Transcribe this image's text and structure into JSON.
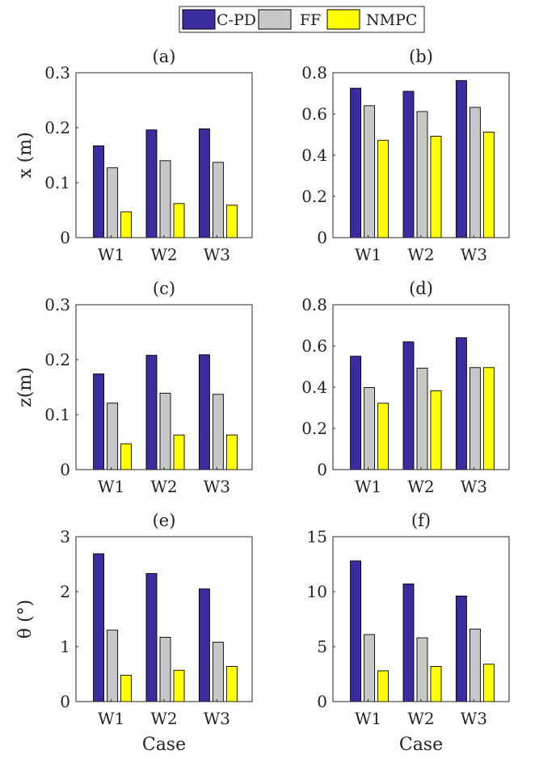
{
  "legend": [
    {
      "name": "C-PD",
      "color": "#3A2B9E"
    },
    {
      "name": "FF",
      "color": "#C8C8C8"
    },
    {
      "name": "NMPC",
      "color": "#FFFF00"
    }
  ],
  "chart_data": [
    {
      "type": "bar",
      "title": "(a)",
      "xlabel": "",
      "ylabel": "x (m)",
      "categories": [
        "W1",
        "W2",
        "W3"
      ],
      "ylim": [
        0,
        0.3
      ],
      "yticks": [
        0,
        0.1,
        0.2,
        0.3
      ],
      "ytick_labels": [
        "0",
        "0.1",
        "0.2",
        "0.3"
      ],
      "series": [
        {
          "name": "C-PD",
          "values": [
            0.167,
            0.196,
            0.198
          ]
        },
        {
          "name": "FF",
          "values": [
            0.127,
            0.14,
            0.137
          ]
        },
        {
          "name": "NMPC",
          "values": [
            0.047,
            0.062,
            0.059
          ]
        }
      ]
    },
    {
      "type": "bar",
      "title": "(b)",
      "xlabel": "",
      "ylabel": "",
      "categories": [
        "W1",
        "W2",
        "W3"
      ],
      "ylim": [
        0,
        0.8
      ],
      "yticks": [
        0,
        0.2,
        0.4,
        0.6,
        0.8
      ],
      "ytick_labels": [
        "0",
        "0.2",
        "0.4",
        "0.6",
        "0.8"
      ],
      "series": [
        {
          "name": "C-PD",
          "values": [
            0.725,
            0.71,
            0.762
          ]
        },
        {
          "name": "FF",
          "values": [
            0.64,
            0.612,
            0.632
          ]
        },
        {
          "name": "NMPC",
          "values": [
            0.472,
            0.492,
            0.512
          ]
        }
      ]
    },
    {
      "type": "bar",
      "title": "(c)",
      "xlabel": "",
      "ylabel": "z(m)",
      "categories": [
        "W1",
        "W2",
        "W3"
      ],
      "ylim": [
        0,
        0.3
      ],
      "yticks": [
        0,
        0.1,
        0.2,
        0.3
      ],
      "ytick_labels": [
        "0",
        "0.1",
        "0.2",
        "0.3"
      ],
      "series": [
        {
          "name": "C-PD",
          "values": [
            0.174,
            0.208,
            0.209
          ]
        },
        {
          "name": "FF",
          "values": [
            0.121,
            0.139,
            0.137
          ]
        },
        {
          "name": "NMPC",
          "values": [
            0.047,
            0.063,
            0.063
          ]
        }
      ]
    },
    {
      "type": "bar",
      "title": "(d)",
      "xlabel": "",
      "ylabel": "",
      "categories": [
        "W1",
        "W2",
        "W3"
      ],
      "ylim": [
        0,
        0.8
      ],
      "yticks": [
        0,
        0.2,
        0.4,
        0.6,
        0.8
      ],
      "ytick_labels": [
        "0",
        "0.2",
        "0.4",
        "0.6",
        "0.8"
      ],
      "series": [
        {
          "name": "C-PD",
          "values": [
            0.55,
            0.62,
            0.64
          ]
        },
        {
          "name": "FF",
          "values": [
            0.398,
            0.492,
            0.495
          ]
        },
        {
          "name": "NMPC",
          "values": [
            0.322,
            0.382,
            0.495
          ]
        }
      ]
    },
    {
      "type": "bar",
      "title": "(e)",
      "xlabel": "Case",
      "ylabel": "θ (°)",
      "categories": [
        "W1",
        "W2",
        "W3"
      ],
      "ylim": [
        0,
        3
      ],
      "yticks": [
        0,
        1,
        2,
        3
      ],
      "ytick_labels": [
        "0",
        "1",
        "2",
        "3"
      ],
      "series": [
        {
          "name": "C-PD",
          "values": [
            2.69,
            2.33,
            2.05
          ]
        },
        {
          "name": "FF",
          "values": [
            1.3,
            1.17,
            1.08
          ]
        },
        {
          "name": "NMPC",
          "values": [
            0.48,
            0.57,
            0.64
          ]
        }
      ]
    },
    {
      "type": "bar",
      "title": "(f)",
      "xlabel": "Case",
      "ylabel": "",
      "categories": [
        "W1",
        "W2",
        "W3"
      ],
      "ylim": [
        0,
        15
      ],
      "yticks": [
        0,
        5,
        10,
        15
      ],
      "ytick_labels": [
        "0",
        "5",
        "10",
        "15"
      ],
      "series": [
        {
          "name": "C-PD",
          "values": [
            12.8,
            10.7,
            9.6
          ]
        },
        {
          "name": "FF",
          "values": [
            6.1,
            5.8,
            6.6
          ]
        },
        {
          "name": "NMPC",
          "values": [
            2.8,
            3.2,
            3.4
          ]
        }
      ]
    }
  ]
}
